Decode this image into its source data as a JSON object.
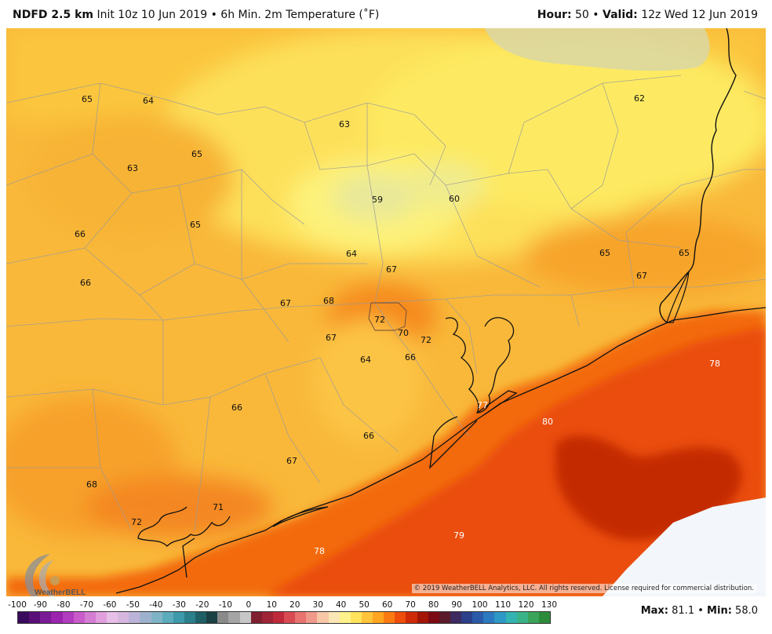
{
  "header": {
    "model": "NDFD 2.5 km",
    "init": "Init 10z 10 Jun 2019",
    "separator": "•",
    "product": "6h Min. 2m Temperature (˚F)",
    "hour_label": "Hour:",
    "hour_value": "50",
    "valid_label": "Valid:",
    "valid_value": "12z Wed 12 Jun 2019"
  },
  "map": {
    "labels": [
      "65",
      "64",
      "63",
      "65",
      "63",
      "65",
      "66",
      "66",
      "67",
      "68",
      "72",
      "70",
      "72",
      "67",
      "64",
      "66",
      "59",
      "60",
      "64",
      "67",
      "62",
      "65",
      "65",
      "67",
      "78",
      "77",
      "80",
      "66",
      "66",
      "67",
      "68",
      "71",
      "72",
      "78",
      "79"
    ]
  },
  "copyright": "© 2019 WeatherBELL Analytics, LLC. All rights reserved. License required for commercial distribution.",
  "logo": {
    "name": "WeatherBELL",
    "icon": "swirl-logo-icon"
  },
  "colorbar": {
    "ticks": [
      "-100",
      "-90",
      "-80",
      "-70",
      "-60",
      "-50",
      "-40",
      "-30",
      "-20",
      "-10",
      "0",
      "10",
      "20",
      "30",
      "40",
      "50",
      "60",
      "70",
      "80",
      "90",
      "100",
      "110",
      "120",
      "130"
    ],
    "colors": [
      "#3a0a5c",
      "#5a1079",
      "#7a1a96",
      "#9a24ad",
      "#b23cc0",
      "#c85bc9",
      "#d57cd3",
      "#e19edd",
      "#e8bfe6",
      "#d7b7e0",
      "#bcb4d8",
      "#9eb2ce",
      "#7fb3c6",
      "#5cabbd",
      "#3c9aaa",
      "#2b7f8c",
      "#1f5f66",
      "#1a4044",
      "#8a8a8a",
      "#a5a5a5",
      "#c7c7c7",
      "#7f1f2f",
      "#9e2436",
      "#bf2a3b",
      "#d94b52",
      "#e8736f",
      "#f09a8c",
      "#f7c7a8",
      "#fbe6b5",
      "#fff28a",
      "#ffe35a",
      "#ffc43a",
      "#ffa51f",
      "#fb7a12",
      "#ee4d0c",
      "#cf2a06",
      "#a31606",
      "#7c0a12",
      "#5a1a2a",
      "#3c2a60",
      "#2c3f8a",
      "#2a5aa8",
      "#2c79bf",
      "#2e98c6",
      "#33b3b2",
      "#3ab388",
      "#3aa55a",
      "#2c8c3a"
    ]
  },
  "stats": {
    "max_label": "Max:",
    "max_value": "81.1",
    "sep": "•",
    "min_label": "Min:",
    "min_value": "58.0"
  }
}
